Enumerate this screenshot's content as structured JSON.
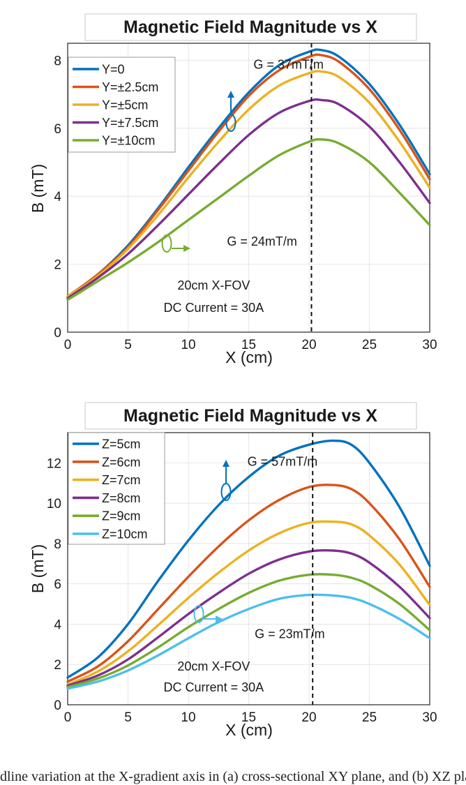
{
  "chart_data": [
    {
      "type": "line",
      "title": "Magnetic Field Magnitude vs X",
      "xlabel": "X (cm)",
      "ylabel": "B (mT)",
      "xlim": [
        0,
        30
      ],
      "ylim": [
        0,
        8.5
      ],
      "xticks": [
        0,
        5,
        10,
        15,
        20,
        25,
        30
      ],
      "yticks": [
        0,
        2,
        4,
        6,
        8
      ],
      "grid": true,
      "legend_position": "top-left",
      "x": [
        0,
        2.5,
        5,
        7.5,
        10,
        12.5,
        15,
        17.5,
        20,
        21,
        22.5,
        25,
        27.5,
        30
      ],
      "series": [
        {
          "name": "Y=0",
          "color": "#0072BD",
          "values": [
            1.05,
            1.7,
            2.55,
            3.65,
            4.85,
            6.0,
            7.05,
            7.85,
            8.25,
            8.3,
            8.1,
            7.3,
            6.1,
            4.65
          ]
        },
        {
          "name": "Y=±2.5cm",
          "color": "#D95319",
          "values": [
            1.05,
            1.7,
            2.5,
            3.6,
            4.75,
            5.9,
            6.95,
            7.7,
            8.1,
            8.15,
            7.95,
            7.15,
            5.95,
            4.5
          ]
        },
        {
          "name": "Y=±5cm",
          "color": "#EDB120",
          "values": [
            1.05,
            1.65,
            2.45,
            3.45,
            4.55,
            5.6,
            6.55,
            7.25,
            7.62,
            7.67,
            7.5,
            6.75,
            5.6,
            4.25
          ]
        },
        {
          "name": "Y=±7.5cm",
          "color": "#7E2F8E",
          "values": [
            1.0,
            1.6,
            2.3,
            3.15,
            4.05,
            4.95,
            5.8,
            6.45,
            6.8,
            6.83,
            6.7,
            6.05,
            5.0,
            3.8
          ]
        },
        {
          "name": "Y=±10cm",
          "color": "#77AC30",
          "values": [
            0.95,
            1.5,
            2.05,
            2.65,
            3.3,
            3.95,
            4.6,
            5.2,
            5.6,
            5.67,
            5.55,
            5.0,
            4.1,
            3.15
          ]
        }
      ],
      "vline_x": 20.2,
      "annotations": [
        {
          "text": "G = 37mT/m",
          "x": 18.3,
          "y": 7.75
        },
        {
          "text": "G = 24mT/m",
          "x": 13.2,
          "y": 2.55
        },
        {
          "text": "20cm X-FOV",
          "x": 12.1,
          "y": 1.25
        },
        {
          "text": "DC Current = 30A",
          "x": 12.1,
          "y": 0.6
        }
      ]
    },
    {
      "type": "line",
      "title": "Magnetic Field Magnitude vs X",
      "xlabel": "X (cm)",
      "ylabel": "B (mT)",
      "xlim": [
        0,
        30
      ],
      "ylim": [
        0,
        13.5
      ],
      "xticks": [
        0,
        5,
        10,
        15,
        20,
        25,
        30
      ],
      "yticks": [
        0,
        2,
        4,
        6,
        8,
        10,
        12
      ],
      "grid": true,
      "legend_position": "top-left",
      "x": [
        0,
        2.5,
        5,
        7.5,
        10,
        12.5,
        15,
        17.5,
        20,
        22,
        23.5,
        25,
        27.5,
        30
      ],
      "series": [
        {
          "name": "Z=5cm",
          "color": "#0072BD",
          "values": [
            1.35,
            2.35,
            4.0,
            6.15,
            8.15,
            9.9,
            11.3,
            12.35,
            12.9,
            13.1,
            12.9,
            12.0,
            9.8,
            6.9
          ]
        },
        {
          "name": "Z=6cm",
          "color": "#D95319",
          "values": [
            1.15,
            1.9,
            3.15,
            4.75,
            6.35,
            7.85,
            9.15,
            10.15,
            10.8,
            10.9,
            10.7,
            10.0,
            8.2,
            5.85
          ]
        },
        {
          "name": "Z=7cm",
          "color": "#EDB120",
          "values": [
            1.0,
            1.65,
            2.65,
            3.95,
            5.3,
            6.55,
            7.65,
            8.5,
            9.02,
            9.08,
            8.95,
            8.4,
            6.95,
            4.95
          ]
        },
        {
          "name": "Z=8cm",
          "color": "#7E2F8E",
          "values": [
            0.95,
            1.45,
            2.25,
            3.35,
            4.5,
            5.55,
            6.5,
            7.2,
            7.6,
            7.65,
            7.5,
            7.05,
            5.85,
            4.3
          ]
        },
        {
          "name": "Z=9cm",
          "color": "#77AC30",
          "values": [
            0.88,
            1.3,
            1.95,
            2.85,
            3.85,
            4.75,
            5.55,
            6.15,
            6.45,
            6.45,
            6.3,
            5.95,
            5.0,
            3.7
          ]
        },
        {
          "name": "Z=10cm",
          "color": "#4DBEEE",
          "values": [
            0.8,
            1.15,
            1.7,
            2.45,
            3.3,
            4.1,
            4.75,
            5.25,
            5.45,
            5.42,
            5.3,
            5.0,
            4.25,
            3.3
          ]
        }
      ],
      "vline_x": 20.3,
      "annotations": [
        {
          "text": "G = 57mT/m",
          "x": 17.8,
          "y": 11.85
        },
        {
          "text": "G = 23mT/m",
          "x": 15.5,
          "y": 3.3
        },
        {
          "text": "20cm X-FOV",
          "x": 12.1,
          "y": 1.7
        },
        {
          "text": "DC Current = 30A",
          "x": 12.1,
          "y": 0.65
        }
      ]
    }
  ],
  "caption": "dline variation at the X-gradient axis in (a) cross-sectional XY plane, and (b) XZ plane."
}
